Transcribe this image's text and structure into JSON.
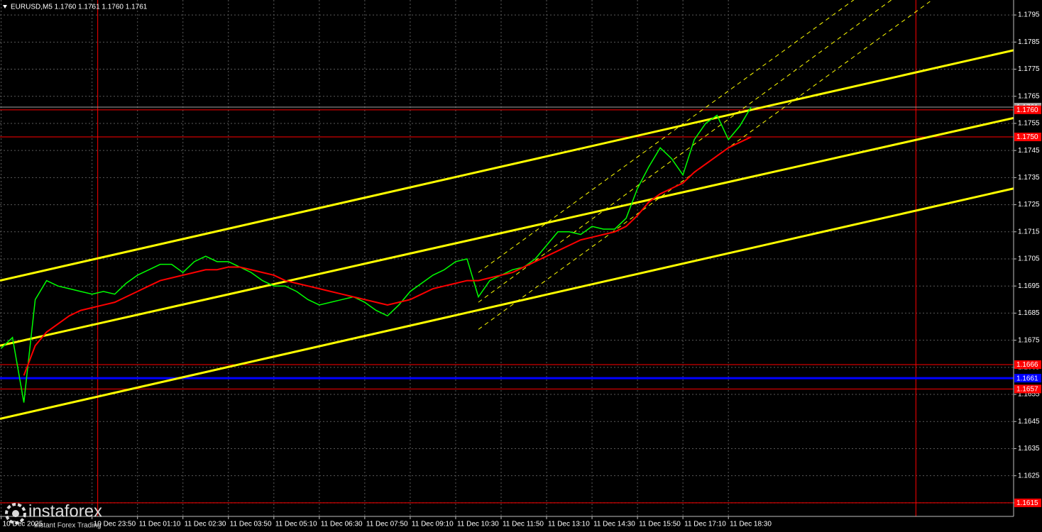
{
  "chart_data": {
    "type": "line",
    "title": "EURUSD,M5  1.1760 1.1761 1.1760 1.1761",
    "x": [
      "10 Dec 21:10",
      "10 Dec 21:30",
      "10 Dec 21:50",
      "10 Dec 22:10",
      "10 Dec 22:30",
      "10 Dec 22:50",
      "10 Dec 23:10",
      "10 Dec 23:30",
      "10 Dec 23:50",
      "11 Dec 00:10",
      "11 Dec 00:30",
      "11 Dec 00:50",
      "11 Dec 01:10",
      "11 Dec 01:30",
      "11 Dec 01:50",
      "11 Dec 02:10",
      "11 Dec 02:30",
      "11 Dec 02:50",
      "11 Dec 03:10",
      "11 Dec 03:30",
      "11 Dec 03:50",
      "11 Dec 04:10",
      "11 Dec 04:30",
      "11 Dec 04:50",
      "11 Dec 05:10",
      "11 Dec 05:30",
      "11 Dec 05:50",
      "11 Dec 06:10",
      "11 Dec 06:30",
      "11 Dec 06:50",
      "11 Dec 07:10",
      "11 Dec 07:30",
      "11 Dec 07:50",
      "11 Dec 08:10",
      "11 Dec 08:30",
      "11 Dec 08:50",
      "11 Dec 09:10",
      "11 Dec 09:30",
      "11 Dec 09:50",
      "11 Dec 10:10",
      "11 Dec 10:30",
      "11 Dec 10:50",
      "11 Dec 11:10",
      "11 Dec 11:30",
      "11 Dec 11:50",
      "11 Dec 12:10",
      "11 Dec 12:30",
      "11 Dec 12:50",
      "11 Dec 13:10",
      "11 Dec 13:30",
      "11 Dec 13:50",
      "11 Dec 14:10",
      "11 Dec 14:30",
      "11 Dec 14:50",
      "11 Dec 15:10",
      "11 Dec 15:30",
      "11 Dec 15:50",
      "11 Dec 16:10",
      "11 Dec 16:30",
      "11 Dec 16:50",
      "11 Dec 17:10",
      "11 Dec 17:30",
      "11 Dec 17:50",
      "11 Dec 18:10",
      "11 Dec 18:30",
      "11 Dec 18:50",
      "11 Dec 19:10"
    ],
    "series": [
      {
        "color": "#00ff00",
        "values": [
          1.1672,
          1.1676,
          1.1652,
          1.169,
          1.1697,
          1.1695,
          1.1694,
          1.1693,
          1.1692,
          1.1693,
          1.1692,
          1.1696,
          1.1699,
          1.1701,
          1.1703,
          1.1703,
          1.17,
          1.1704,
          1.1706,
          1.1704,
          1.1704,
          1.1702,
          1.17,
          1.1697,
          1.1695,
          1.1695,
          1.1693,
          1.169,
          1.1688,
          1.1689,
          1.169,
          1.1691,
          1.1689,
          1.1686,
          1.1684,
          1.1688,
          1.1693,
          1.1696,
          1.1699,
          1.1701,
          1.1704,
          1.1705,
          1.1691,
          1.1697,
          1.1699,
          1.1701,
          1.1702,
          1.1705,
          1.171,
          1.1715,
          1.1715,
          1.1714,
          1.1717,
          1.1716,
          1.1716,
          1.172,
          1.1731,
          1.1739,
          1.1746,
          1.1742,
          1.1736,
          1.1749,
          1.1755,
          1.1758,
          1.1749,
          1.1754,
          1.1761
        ]
      },
      {
        "color": "#ff0000",
        "values": [
          null,
          null,
          1.1662,
          1.1673,
          1.1678,
          1.1681,
          1.1684,
          1.1686,
          1.1687,
          1.1688,
          1.1689,
          1.1691,
          1.1693,
          1.1695,
          1.1697,
          1.1698,
          1.1699,
          1.17,
          1.1701,
          1.1701,
          1.1702,
          1.1702,
          1.1701,
          1.17,
          1.1699,
          1.1697,
          1.1696,
          1.1695,
          1.1694,
          1.1693,
          1.1692,
          1.1691,
          1.169,
          1.1689,
          1.1688,
          1.1689,
          1.169,
          1.1692,
          1.1694,
          1.1695,
          1.1696,
          1.1697,
          1.1697,
          1.1698,
          1.1699,
          1.17,
          1.1702,
          1.1704,
          1.1706,
          1.1708,
          1.171,
          1.1712,
          1.1713,
          1.1714,
          1.1715,
          1.1717,
          1.1721,
          1.1726,
          1.1729,
          1.1731,
          1.1733,
          1.1737,
          1.174,
          1.1743,
          1.1746,
          1.1748,
          1.175
        ]
      }
    ],
    "xlim": [
      "10 Dec 21:08",
      "12 Dec 02:52"
    ],
    "xticks": [
      {
        "value": "10 Dec 21:10",
        "label": "10 Dec 2025"
      },
      "10 Dec 23:50",
      "11 Dec 01:10",
      "11 Dec 02:30",
      "11 Dec 03:50",
      "11 Dec 05:10",
      "11 Dec 06:30",
      "11 Dec 07:50",
      "11 Dec 09:10",
      "11 Dec 10:30",
      "11 Dec 11:50",
      "11 Dec 13:10",
      "11 Dec 14:30",
      "11 Dec 15:50",
      "11 Dec 17:10",
      "11 Dec 18:30"
    ],
    "ylim": [
      1.161,
      1.18
    ],
    "yticks": [
      1.1615,
      1.1625,
      1.1635,
      1.1645,
      1.1655,
      1.1665,
      1.1675,
      1.1685,
      1.1695,
      1.1705,
      1.1715,
      1.1725,
      1.1735,
      1.1745,
      1.1755,
      1.1765,
      1.1775,
      1.1785,
      1.1795
    ],
    "grid": true,
    "levels": [
      {
        "value": 1.1761,
        "label": "1.1761",
        "color": "#a0a0a0"
      },
      {
        "value": 1.176,
        "label": "1.1760",
        "color": "#ff0000"
      },
      {
        "value": 1.175,
        "label": "1.1750",
        "color": "#ff0000"
      },
      {
        "value": 1.1666,
        "label": "1.1666",
        "color": "#ff0000"
      },
      {
        "value": 1.1661,
        "label": "1.1661",
        "color": "#0000ff"
      },
      {
        "value": 1.1657,
        "label": "1.1657",
        "color": "#ff0000"
      },
      {
        "value": 1.1615,
        "label": "1.1615",
        "color": "#ff0000"
      }
    ],
    "vlines": [
      {
        "value": "11 Dec 00:00",
        "color": "#ff0000"
      },
      {
        "value": "12 Dec 00:00",
        "color": "#ff0000"
      }
    ],
    "trendlines": [
      {
        "color": "#ffff00",
        "x": [
          "10 Dec 21:08",
          "12 Dec 02:52"
        ],
        "values": [
          1.1697,
          1.1782
        ]
      },
      {
        "color": "#ffff00",
        "x": [
          "10 Dec 21:08",
          "12 Dec 02:52"
        ],
        "values": [
          1.1673,
          1.1757
        ]
      },
      {
        "color": "#ffff00",
        "x": [
          "10 Dec 21:08",
          "12 Dec 02:52"
        ],
        "values": [
          1.1646,
          1.1731
        ]
      }
    ],
    "channel": [
      {
        "color": "#ffff00",
        "x": [
          "11 Dec 11:10",
          "12 Dec 00:25"
        ],
        "values": [
          1.17,
          1.1821
        ]
      },
      {
        "color": "#ffff00",
        "x": [
          "11 Dec 11:10",
          "12 Dec 00:25"
        ],
        "values": [
          1.1689,
          1.1811
        ]
      },
      {
        "color": "#ffff00",
        "x": [
          "11 Dec 11:10",
          "12 Dec 00:25"
        ],
        "values": [
          1.1679,
          1.18
        ]
      }
    ]
  },
  "watermark": {
    "brand": "instaforex",
    "tagline": "Instant Forex Trading"
  }
}
